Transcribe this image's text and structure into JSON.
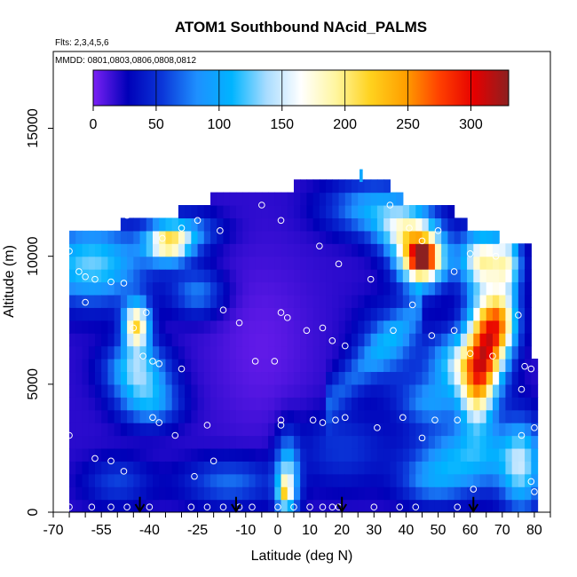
{
  "chart_data": {
    "type": "heatmap",
    "title": "ATOM1 Southbound NAcid_PALMS",
    "subtitle_flights": "Flts: 2,3,4,5,6",
    "subtitle_dates": "MMDD: 0801,0803,0806,0808,0812",
    "xlabel": "Latitude (deg N)",
    "ylabel": "Altitude (m)",
    "xlim": [
      -70,
      85
    ],
    "ylim": [
      0,
      18000
    ],
    "xticks": [
      "-70",
      "-55",
      "-40",
      "-25",
      "-10",
      "0",
      "10",
      "20",
      "30",
      "40",
      "50",
      "60",
      "70",
      "80"
    ],
    "xtick_values": [
      -70,
      -55,
      -40,
      -25,
      -10,
      0,
      10,
      20,
      30,
      40,
      50,
      60,
      70,
      80
    ],
    "yticks": [
      "0",
      "5000",
      "10000",
      "15000"
    ],
    "ytick_values": [
      0,
      5000,
      10000,
      15000
    ],
    "colorbar": {
      "ticks": [
        "0",
        "50",
        "100",
        "150",
        "200",
        "250",
        "300"
      ],
      "tick_values": [
        0,
        50,
        100,
        150,
        200,
        250,
        300
      ],
      "range": [
        0,
        330
      ],
      "colors": [
        "#7b21f5",
        "#0000b8",
        "#0b37d9",
        "#1e90ff",
        "#00b4ff",
        "#a8dcff",
        "#ffffff",
        "#fff6a0",
        "#ffd21e",
        "#ffa000",
        "#ff4000",
        "#e60000",
        "#8c2020"
      ]
    },
    "profile_latitudes": [
      -43,
      -13,
      20,
      61
    ],
    "obs_points": [
      [
        -65,
        10200
      ],
      [
        -62,
        9400
      ],
      [
        -60,
        9200
      ],
      [
        -57,
        9100
      ],
      [
        -52,
        9000
      ],
      [
        -48,
        8950
      ],
      [
        -60,
        8200
      ],
      [
        -45,
        7200
      ],
      [
        -41,
        7800
      ],
      [
        -42,
        6100
      ],
      [
        -39,
        5900
      ],
      [
        -37,
        5800
      ],
      [
        -30,
        5600
      ],
      [
        -39,
        3700
      ],
      [
        -37,
        3500
      ],
      [
        -32,
        3000
      ],
      [
        -26,
        1400
      ],
      [
        -20,
        2000
      ],
      [
        -57,
        2100
      ],
      [
        -52,
        2000
      ],
      [
        -48,
        1600
      ],
      [
        -65,
        3000
      ],
      [
        -65,
        200
      ],
      [
        -58,
        200
      ],
      [
        -52,
        200
      ],
      [
        -47,
        200
      ],
      [
        -40,
        200
      ],
      [
        -27,
        200
      ],
      [
        -22,
        200
      ],
      [
        -17,
        200
      ],
      [
        -12,
        200
      ],
      [
        -8,
        200
      ],
      [
        0,
        200
      ],
      [
        5,
        200
      ],
      [
        10,
        200
      ],
      [
        14,
        200
      ],
      [
        17,
        200
      ],
      [
        19,
        200
      ],
      [
        30,
        200
      ],
      [
        38,
        200
      ],
      [
        43,
        200
      ],
      [
        56,
        200
      ],
      [
        -47,
        11600
      ],
      [
        -36,
        10700
      ],
      [
        -30,
        11100
      ],
      [
        -25,
        11400
      ],
      [
        -18,
        11000
      ],
      [
        -5,
        12000
      ],
      [
        1,
        11400
      ],
      [
        13,
        10400
      ],
      [
        19,
        9700
      ],
      [
        29,
        9100
      ],
      [
        35,
        12000
      ],
      [
        41,
        11100
      ],
      [
        45,
        10600
      ],
      [
        50,
        11000
      ],
      [
        55,
        9400
      ],
      [
        60,
        10100
      ],
      [
        68,
        10000
      ],
      [
        -17,
        7900
      ],
      [
        -12,
        7400
      ],
      [
        1,
        7800
      ],
      [
        3,
        7600
      ],
      [
        9,
        7100
      ],
      [
        14,
        7200
      ],
      [
        17,
        6700
      ],
      [
        21,
        6500
      ],
      [
        -7,
        5900
      ],
      [
        -1,
        5900
      ],
      [
        36,
        7100
      ],
      [
        42,
        8100
      ],
      [
        48,
        6900
      ],
      [
        55,
        7100
      ],
      [
        60,
        6200
      ],
      [
        67,
        6100
      ],
      [
        77,
        5700
      ],
      [
        79,
        5600
      ],
      [
        76,
        4800
      ],
      [
        1,
        3600
      ],
      [
        1,
        3400
      ],
      [
        11,
        3600
      ],
      [
        14,
        3500
      ],
      [
        18,
        3600
      ],
      [
        21,
        3700
      ],
      [
        31,
        3300
      ],
      [
        39,
        3700
      ],
      [
        45,
        2900
      ],
      [
        49,
        3600
      ],
      [
        56,
        3600
      ],
      [
        76,
        3000
      ],
      [
        80,
        3300
      ],
      [
        79,
        1200
      ],
      [
        80,
        800
      ],
      [
        -22,
        3400
      ],
      [
        61,
        900
      ],
      [
        75,
        7700
      ]
    ]
  }
}
